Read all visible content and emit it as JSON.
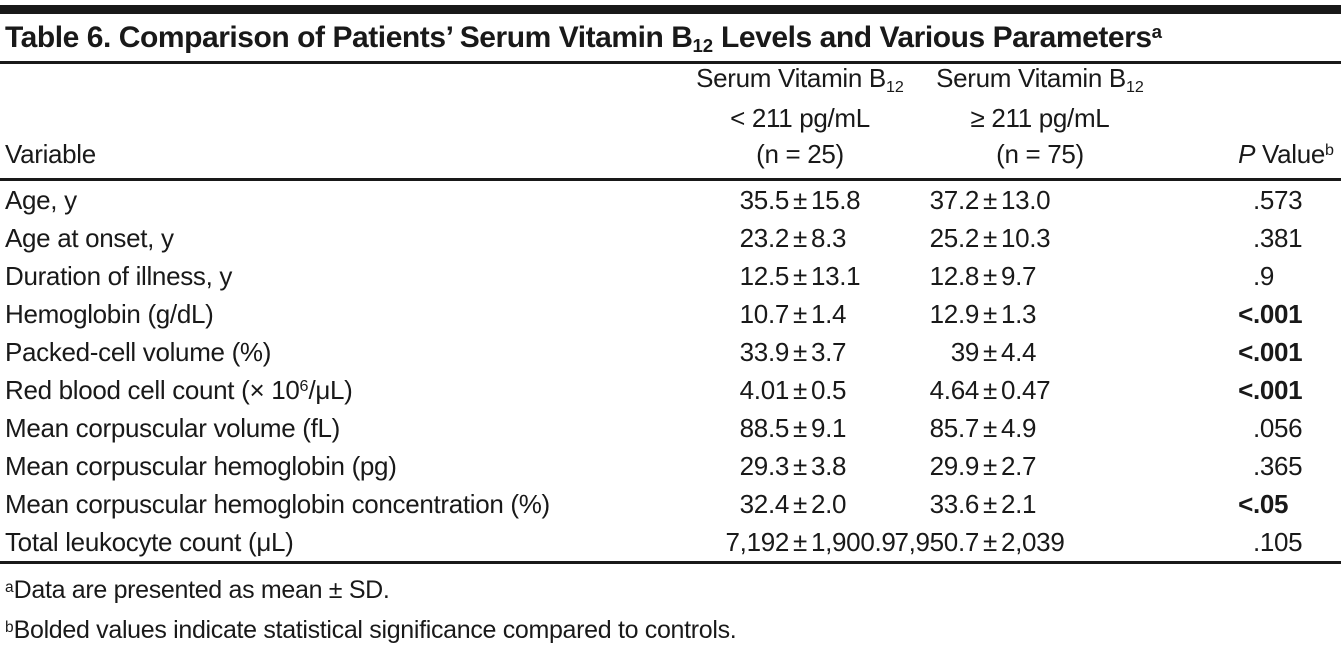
{
  "meta": {
    "background": "#ffffff",
    "ink": "#191919"
  },
  "table": {
    "title": {
      "prefix": "Table 6. Comparison of Patients’ Serum Vitamin B",
      "sub": "12",
      "suffix": " Levels and Various Parameters",
      "sup": "a"
    },
    "plus_minus": "±",
    "header": {
      "variable": "Variable",
      "group1": {
        "line1_pre": "Serum Vitamin B",
        "line1_sub": "12",
        "line2": "< 211 pg/mL",
        "line3": "(n = 25)"
      },
      "group2": {
        "line1_pre": "Serum Vitamin B",
        "line1_sub": "12",
        "line2": "≥ 211 pg/mL",
        "line3": "(n = 75)"
      },
      "p": {
        "italic": "P",
        "rest": " Value",
        "sup": "b"
      }
    },
    "rows": [
      {
        "variable_pre": "Age, y",
        "variable_sup": "",
        "variable_post": "",
        "g1_mean": "35.5",
        "g1_sd": "15.8",
        "g2_mean": "37.2",
        "g2_sd": "13.0",
        "p_prefix": "",
        "p_value": ".573",
        "p_bold": false
      },
      {
        "variable_pre": "Age at onset, y",
        "variable_sup": "",
        "variable_post": "",
        "g1_mean": "23.2",
        "g1_sd": "8.3",
        "g2_mean": "25.2",
        "g2_sd": "10.3",
        "p_prefix": "",
        "p_value": ".381",
        "p_bold": false
      },
      {
        "variable_pre": "Duration of illness, y",
        "variable_sup": "",
        "variable_post": "",
        "g1_mean": "12.5",
        "g1_sd": "13.1",
        "g2_mean": "12.8",
        "g2_sd": "9.7",
        "p_prefix": "",
        "p_value": ".9",
        "p_bold": false
      },
      {
        "variable_pre": "Hemoglobin (g/dL)",
        "variable_sup": "",
        "variable_post": "",
        "g1_mean": "10.7",
        "g1_sd": "1.4",
        "g2_mean": "12.9",
        "g2_sd": "1.3",
        "p_prefix": "<",
        "p_value": ".001",
        "p_bold": true
      },
      {
        "variable_pre": "Packed-cell volume (%)",
        "variable_sup": "",
        "variable_post": "",
        "g1_mean": "33.9",
        "g1_sd": "3.7",
        "g2_mean": "39",
        "g2_sd": "4.4",
        "p_prefix": "<",
        "p_value": ".001",
        "p_bold": true
      },
      {
        "variable_pre": "Red blood cell count (× 10",
        "variable_sup": "6",
        "variable_post": "/μL)",
        "g1_mean": "4.01",
        "g1_sd": "0.5",
        "g2_mean": "4.64",
        "g2_sd": "0.47",
        "p_prefix": "<",
        "p_value": ".001",
        "p_bold": true
      },
      {
        "variable_pre": "Mean corpuscular volume (fL)",
        "variable_sup": "",
        "variable_post": "",
        "g1_mean": "88.5",
        "g1_sd": "9.1",
        "g2_mean": "85.7",
        "g2_sd": "4.9",
        "p_prefix": "",
        "p_value": ".056",
        "p_bold": false
      },
      {
        "variable_pre": "Mean corpuscular hemoglobin (pg)",
        "variable_sup": "",
        "variable_post": "",
        "g1_mean": "29.3",
        "g1_sd": "3.8",
        "g2_mean": "29.9",
        "g2_sd": "2.7",
        "p_prefix": "",
        "p_value": ".365",
        "p_bold": false
      },
      {
        "variable_pre": "Mean corpuscular hemoglobin concentration (%)",
        "variable_sup": "",
        "variable_post": "",
        "g1_mean": "32.4",
        "g1_sd": "2.0",
        "g2_mean": "33.6",
        "g2_sd": "2.1",
        "p_prefix": "<",
        "p_value": ".05",
        "p_bold": true
      },
      {
        "variable_pre": "Total leukocyte count (μL)",
        "variable_sup": "",
        "variable_post": "",
        "g1_mean": "7,192",
        "g1_sd": "1,900.9",
        "g2_mean": "7,950.7",
        "g2_sd": "2,039",
        "p_prefix": "",
        "p_value": ".105",
        "p_bold": false
      }
    ],
    "footnotes": [
      {
        "marker": "a",
        "text": "Data are presented as mean ± SD."
      },
      {
        "marker": "b",
        "text": "Bolded values indicate statistical significance compared to controls."
      }
    ]
  }
}
